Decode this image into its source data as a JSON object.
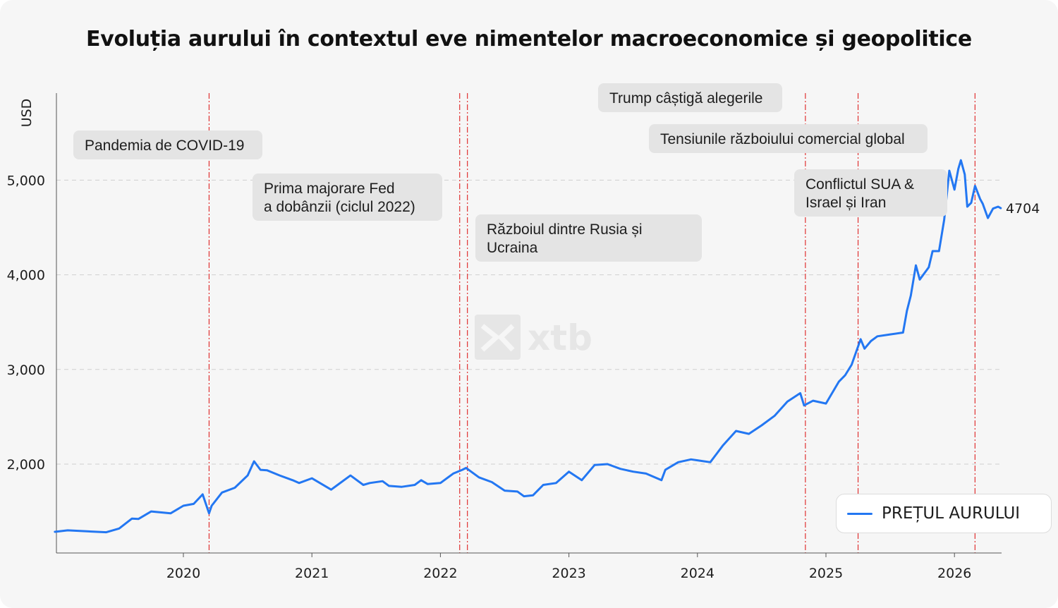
{
  "title": "Evoluția aurului în contextul eve nimentelor macroeconomice și geopolitice",
  "watermark": {
    "text": "xtb"
  },
  "legend": {
    "label": "PREȚUL AURULUI"
  },
  "colors": {
    "line": "#2377f2",
    "event_line": "#e03030",
    "grid": "#cfcfcf",
    "background": "#f6f6f6"
  },
  "chart_data": {
    "type": "line",
    "ylabel": "USD",
    "xlabel": "",
    "y_ticks": [
      "2,000",
      "3,000",
      "4,000",
      "5,000"
    ],
    "y_tick_values": [
      2000,
      3000,
      4000,
      5000
    ],
    "x_ticks": [
      "2020",
      "2021",
      "2022",
      "2023",
      "2024",
      "2025",
      "2026"
    ],
    "x_tick_values": [
      2020,
      2021,
      2022,
      2023,
      2024,
      2025,
      2026
    ],
    "xlim": [
      2019.0,
      2026.36
    ],
    "ylim": [
      1100,
      5950
    ],
    "grid": "horizontal dashed",
    "legend_position": "bottom-right",
    "last_value_label": "4704",
    "series": [
      {
        "name": "PREȚUL AURULUI",
        "x": [
          2019.0,
          2019.1,
          2019.25,
          2019.4,
          2019.5,
          2019.6,
          2019.65,
          2019.75,
          2019.9,
          2020.0,
          2020.08,
          2020.15,
          2020.2,
          2020.22,
          2020.3,
          2020.4,
          2020.5,
          2020.55,
          2020.6,
          2020.65,
          2020.75,
          2020.85,
          2020.9,
          2021.0,
          2021.15,
          2021.2,
          2021.3,
          2021.4,
          2021.45,
          2021.55,
          2021.6,
          2021.7,
          2021.8,
          2021.85,
          2021.9,
          2022.0,
          2022.1,
          2022.17,
          2022.2,
          2022.3,
          2022.4,
          2022.5,
          2022.6,
          2022.65,
          2022.72,
          2022.8,
          2022.9,
          2023.0,
          2023.1,
          2023.2,
          2023.3,
          2023.4,
          2023.5,
          2023.6,
          2023.72,
          2023.75,
          2023.85,
          2023.95,
          2024.0,
          2024.1,
          2024.2,
          2024.3,
          2024.4,
          2024.5,
          2024.6,
          2024.7,
          2024.8,
          2024.83,
          2024.9,
          2025.0,
          2025.1,
          2025.15,
          2025.2,
          2025.27,
          2025.3,
          2025.35,
          2025.4,
          2025.5,
          2025.6,
          2025.63,
          2025.66,
          2025.7,
          2025.73,
          2025.8,
          2025.83,
          2025.88,
          2025.92,
          2025.96,
          2026.0,
          2026.03,
          2026.05,
          2026.08,
          2026.1,
          2026.13,
          2026.16,
          2026.2,
          2026.22,
          2026.26,
          2026.3,
          2026.34,
          2026.36
        ],
        "values": [
          1285,
          1300,
          1290,
          1280,
          1320,
          1425,
          1420,
          1500,
          1480,
          1560,
          1580,
          1680,
          1480,
          1560,
          1700,
          1750,
          1880,
          2030,
          1940,
          1935,
          1880,
          1830,
          1800,
          1850,
          1730,
          1780,
          1880,
          1780,
          1800,
          1820,
          1770,
          1760,
          1780,
          1830,
          1790,
          1800,
          1900,
          1940,
          1960,
          1860,
          1810,
          1720,
          1710,
          1660,
          1670,
          1780,
          1800,
          1920,
          1830,
          1990,
          2000,
          1950,
          1920,
          1900,
          1830,
          1940,
          2020,
          2050,
          2040,
          2020,
          2200,
          2350,
          2320,
          2410,
          2510,
          2660,
          2750,
          2620,
          2670,
          2640,
          2870,
          2940,
          3050,
          3320,
          3220,
          3300,
          3350,
          3370,
          3390,
          3620,
          3780,
          4100,
          3950,
          4080,
          4250,
          4250,
          4580,
          5100,
          4900,
          5120,
          5210,
          5060,
          4720,
          4760,
          4940,
          4800,
          4750,
          4600,
          4700,
          4720,
          4704
        ]
      }
    ],
    "events": [
      {
        "x": 2020.2
      },
      {
        "x": 2022.15
      },
      {
        "x": 2022.21
      },
      {
        "x": 2024.84
      },
      {
        "x": 2025.25
      },
      {
        "x": 2026.16
      }
    ],
    "annotations": [
      {
        "lines": [
          "Pandemia de COVID-19"
        ]
      },
      {
        "lines": [
          "Prima majorare Fed",
          "a dobânzii (ciclul 2022)"
        ]
      },
      {
        "lines": [
          "Războiul dintre Rusia și",
          "Ucraina"
        ]
      },
      {
        "lines": [
          "Trump câștigă alegerile"
        ]
      },
      {
        "lines": [
          "Tensiunile războiului comercial global"
        ]
      },
      {
        "lines": [
          "Conflictul SUA &",
          "Israel și Iran"
        ]
      }
    ]
  }
}
